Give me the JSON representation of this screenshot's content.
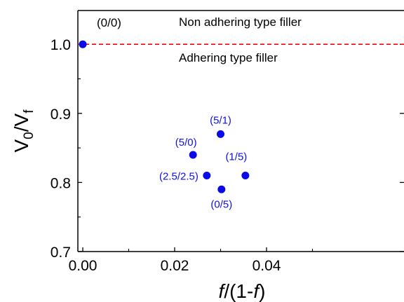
{
  "chart_data": {
    "type": "scatter",
    "xlabel": {
      "italic1": "f",
      "mid": "/(1-",
      "italic2": "f",
      "end": ")"
    },
    "ylabel": {
      "v": "V",
      "sub0": "0",
      "slash": "/V",
      "subf": "f"
    },
    "xlim": [
      0.0,
      0.05
    ],
    "ylim": [
      0.7,
      1.05
    ],
    "x_ticks": [
      "0.00",
      "0.02",
      "0.04"
    ],
    "x_tick_values": [
      0.0,
      0.02,
      0.04
    ],
    "y_ticks": [
      "0.7",
      "0.8",
      "0.9",
      "1.0"
    ],
    "y_tick_values": [
      0.7,
      0.8,
      0.9,
      1.0
    ],
    "reference_line": {
      "y": 1.0,
      "style": "dashed",
      "color": "#ff0000"
    },
    "annotations": {
      "above_line": "Non adhering type filler",
      "below_line": "Adhering type filler"
    },
    "points": [
      {
        "label": "(0/0)",
        "x": 0.0,
        "y": 1.0
      },
      {
        "label": "(5/0)",
        "x": 0.024,
        "y": 0.84
      },
      {
        "label": "(5/1)",
        "x": 0.03,
        "y": 0.87
      },
      {
        "label": "(2.5/2.5)",
        "x": 0.027,
        "y": 0.81
      },
      {
        "label": "(1/5)",
        "x": 0.0354,
        "y": 0.81
      },
      {
        "label": "(0/5)",
        "x": 0.0302,
        "y": 0.79
      }
    ],
    "point_color": "#0a0ae6",
    "grid": false
  }
}
